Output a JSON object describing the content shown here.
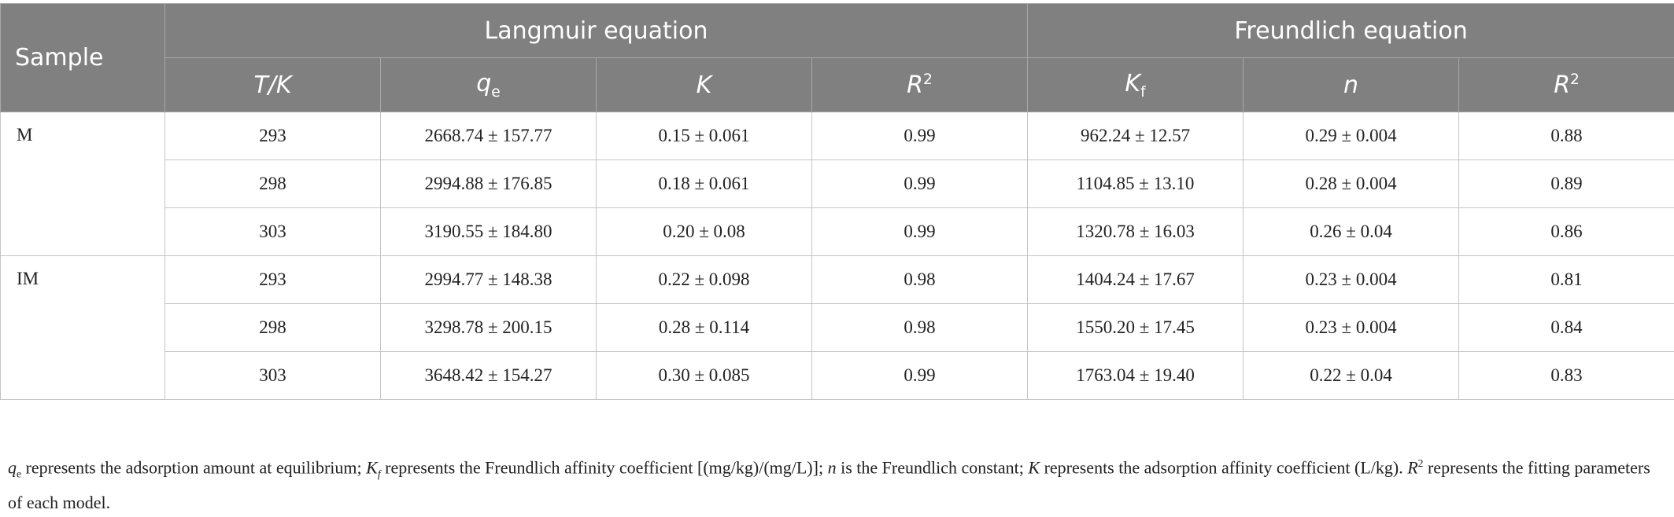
{
  "table": {
    "group_headers": [
      "Sample",
      "Langmuir equation",
      "Freundlich equation"
    ],
    "sub_headers": [
      {
        "main": "T/K"
      },
      {
        "main": "q",
        "sub": "e"
      },
      {
        "main": "K"
      },
      {
        "main": "R",
        "sup": "2"
      },
      {
        "main": "K",
        "sub": "f"
      },
      {
        "main": "n"
      },
      {
        "main": "R",
        "sup": "2"
      }
    ],
    "groups": [
      {
        "sample": "M",
        "rows": [
          [
            "293",
            "2668.74 ± 157.77",
            "0.15 ± 0.061",
            "0.99",
            "962.24 ± 12.57",
            "0.29 ± 0.004",
            "0.88"
          ],
          [
            "298",
            "2994.88 ± 176.85",
            "0.18 ± 0.061",
            "0.99",
            "1104.85 ± 13.10",
            "0.28 ± 0.004",
            "0.89"
          ],
          [
            "303",
            "3190.55 ± 184.80",
            "0.20 ± 0.08",
            "0.99",
            "1320.78 ± 16.03",
            "0.26 ± 0.04",
            "0.86"
          ]
        ]
      },
      {
        "sample": "IM",
        "rows": [
          [
            "293",
            "2994.77 ± 148.38",
            "0.22 ± 0.098",
            "0.98",
            "1404.24 ± 17.67",
            "0.23 ± 0.004",
            "0.81"
          ],
          [
            "298",
            "3298.78 ± 200.15",
            "0.28 ± 0.114",
            "0.98",
            "1550.20 ± 17.45",
            "0.23 ± 0.004",
            "0.84"
          ],
          [
            "303",
            "3648.42 ± 154.27",
            "0.30 ± 0.085",
            "0.99",
            "1763.04 ± 19.40",
            "0.22 ± 0.04",
            "0.83"
          ]
        ]
      }
    ]
  },
  "footnote": [
    "q",
    "e",
    " represents the adsorption amount at equilibrium; ",
    "K",
    "f",
    " represents the Freundlich affinity coefficient [(mg/kg)/(mg/L)]; ",
    "n",
    " is the Freundlich constant; ",
    "K",
    " represents the adsorption affinity coefficient (L/kg). ",
    "R",
    "2",
    " represents the fitting parameters of each model."
  ]
}
